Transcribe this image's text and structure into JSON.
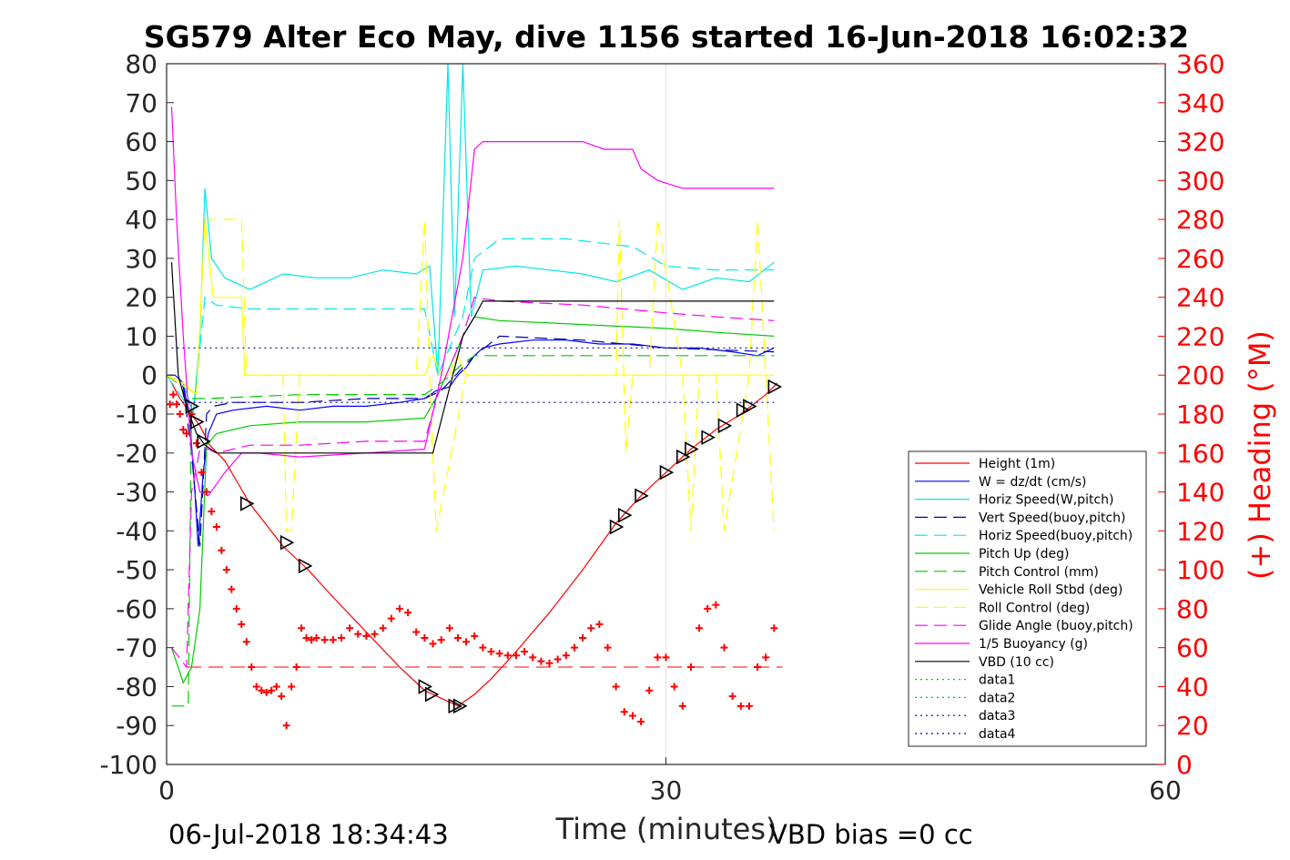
{
  "chart_data": {
    "type": "line",
    "title": "SG579 Alter Eco May, dive 1156 started 16-Jun-2018 16:02:32",
    "xlabel": "Time (minutes)",
    "ylabel": "",
    "ylabel_right": "(+) Heading (°M)",
    "xlim": [
      0,
      60
    ],
    "ylim": [
      -100,
      80
    ],
    "ylim_right": [
      0,
      360
    ],
    "x_ticks": [
      "0",
      "30",
      "60"
    ],
    "y_ticks": [
      "80",
      "70",
      "60",
      "50",
      "40",
      "30",
      "20",
      "10",
      "0",
      "-10",
      "-20",
      "-30",
      "-40",
      "-50",
      "-60",
      "-70",
      "-80",
      "-90",
      "-100"
    ],
    "y_ticks_right": [
      "360",
      "340",
      "320",
      "300",
      "280",
      "260",
      "240",
      "220",
      "200",
      "180",
      "160",
      "140",
      "120",
      "100",
      "80",
      "60",
      "40",
      "20",
      "0"
    ],
    "grid": "x-major only",
    "legend_position": "lower-right",
    "footer_left": "06-Jul-2018 18:34:43",
    "footer_right": "VBD bias =0 cc",
    "series": [
      {
        "name": "Height (1m)",
        "color": "#ff0000",
        "style": "solid",
        "x": [
          0.3,
          0.8,
          1.3,
          2.0,
          2.6,
          3.5,
          5,
          7,
          8.5,
          10,
          12,
          14,
          15.5,
          16.5,
          17.5,
          18.5,
          19.5,
          21,
          23,
          25,
          27,
          28.5,
          30,
          31.5,
          33,
          34.5,
          36,
          36.7
        ],
        "y": [
          -2,
          -6,
          -9,
          -13,
          -18,
          -22,
          -33,
          -44,
          -50,
          -57,
          -66,
          -75,
          -81,
          -83,
          -85,
          -82,
          -78,
          -71,
          -61,
          -50,
          -38,
          -31,
          -25,
          -19,
          -14,
          -10,
          -5,
          -2
        ]
      },
      {
        "name": "W = dz/dt (cm/s)",
        "color": "#0000ff",
        "style": "solid",
        "x": [
          0,
          0.5,
          1.0,
          1.4,
          1.7,
          1.9,
          2.2,
          2.5,
          3,
          4,
          6,
          8,
          10,
          12,
          14,
          15.5,
          16.2,
          17,
          17.5,
          18,
          18.5,
          19,
          20,
          22,
          24,
          26,
          28,
          30,
          32,
          34,
          35.5,
          36.5
        ],
        "y": [
          0,
          0,
          -2,
          -12,
          -30,
          -44,
          -25,
          -15,
          -10,
          -9,
          -8,
          -9,
          -8,
          -8,
          -7,
          -6,
          -4,
          -3,
          0,
          2,
          5,
          7,
          8,
          9,
          9,
          8,
          8,
          7,
          7,
          6,
          5,
          7
        ]
      },
      {
        "name": "Horiz Speed(W,pitch)",
        "color": "#00e6e6",
        "style": "solid",
        "x": [
          0,
          1,
          1.6,
          2.0,
          2.3,
          2.7,
          3.5,
          4,
          5,
          7,
          9,
          11,
          13,
          15,
          15.8,
          16.3,
          16.9,
          17.3,
          17.8,
          18.3,
          19,
          21,
          23,
          25,
          27,
          29,
          31,
          33,
          35,
          36.5
        ],
        "y": [
          0,
          -2,
          -10,
          10,
          48,
          30,
          25,
          24,
          22,
          26,
          25,
          25,
          27,
          26,
          28,
          0,
          80,
          15,
          80,
          15,
          27,
          28,
          27,
          26,
          24,
          27,
          22,
          25,
          24,
          29
        ]
      },
      {
        "name": "Vert Speed(buoy,pitch)",
        "color": "#0000aa",
        "style": "dashed",
        "x": [
          0,
          1.0,
          1.5,
          2.0,
          2.4,
          2.8,
          4,
          8,
          12,
          15.5,
          16.5,
          17.8,
          18.5,
          20,
          25,
          30,
          36.5
        ],
        "y": [
          0,
          -3,
          -20,
          -44,
          -10,
          -8,
          -7,
          -7,
          -6,
          -6,
          -4,
          2,
          5,
          10,
          9,
          7,
          6
        ]
      },
      {
        "name": "Horiz Speed(buoy,pitch)",
        "color": "#00e6e6",
        "style": "dashed",
        "x": [
          0,
          1.6,
          2.3,
          3,
          5,
          8,
          12,
          15.5,
          16.3,
          17.8,
          18.5,
          20,
          24,
          28,
          30,
          33,
          36.5
        ],
        "y": [
          0,
          -10,
          20,
          18,
          17,
          17,
          17,
          17,
          0,
          15,
          30,
          35,
          35,
          33,
          28,
          27,
          27
        ]
      },
      {
        "name": "Pitch Up (deg)",
        "color": "#00cc00",
        "style": "solid",
        "x": [
          0.3,
          1.0,
          1.5,
          2.0,
          2.4,
          3,
          5,
          8,
          12,
          15.5,
          16.3,
          17.8,
          18.5,
          20,
          25,
          30,
          33,
          36.5
        ],
        "y": [
          -70,
          -79,
          -75,
          -60,
          -18,
          -15,
          -13,
          -12,
          -12,
          -11,
          -5,
          10,
          15,
          14,
          13,
          12,
          11,
          10
        ]
      },
      {
        "name": "Pitch Control (mm)",
        "color": "#00cc00",
        "style": "dashed",
        "x": [
          0.3,
          1.3,
          1.5,
          2.0,
          2.5,
          8,
          12,
          15.5,
          16.5,
          17.8,
          18.5,
          25,
          30,
          36.5
        ],
        "y": [
          -85,
          -85,
          -6,
          -6,
          -6,
          -5,
          -5,
          -5,
          -2,
          3,
          5,
          5,
          5,
          5
        ]
      },
      {
        "name": "Vehicle Roll Stbd (deg)",
        "color": "#ffff00",
        "style": "solid",
        "x": [
          0,
          1,
          1.8,
          2.3,
          2.8,
          4.5,
          4.7,
          5,
          7,
          10,
          12,
          15.5,
          16,
          16.5,
          17,
          17.5,
          18,
          20,
          22,
          25,
          28,
          30,
          32,
          33.5,
          35,
          36.5
        ],
        "y": [
          0,
          -2,
          -5,
          40,
          20,
          20,
          0,
          0,
          0,
          0,
          0,
          0,
          5,
          0,
          0,
          5,
          0,
          0,
          0,
          0,
          0,
          0,
          0,
          0,
          0,
          0
        ]
      },
      {
        "name": "Roll Control (deg)",
        "color": "#ffff00",
        "style": "dashed",
        "x": [
          0,
          1.8,
          2.3,
          4.5,
          4.8,
          7,
          7.2,
          7.5,
          8,
          15,
          15.5,
          15.8,
          16.2,
          18,
          25,
          27,
          27.2,
          27.6,
          28,
          29,
          29.5,
          31,
          31.5,
          32,
          33,
          33.5,
          35,
          35.5,
          36,
          36.5
        ],
        "y": [
          0,
          -5,
          40,
          40,
          0,
          0,
          -40,
          -40,
          0,
          0,
          40,
          0,
          -40,
          0,
          0,
          0,
          40,
          -20,
          0,
          0,
          40,
          0,
          -40,
          0,
          0,
          -40,
          0,
          40,
          0,
          -40
        ]
      },
      {
        "name": "Glide Angle (buoy,pitch)",
        "color": "#ff00ff",
        "style": "dashed",
        "x": [
          0.3,
          1.2,
          1.5,
          2.0,
          2.5,
          3,
          5,
          8,
          12,
          15.5,
          16.3,
          17.8,
          18.5,
          20,
          25,
          30,
          33,
          36.5
        ],
        "y": [
          -70,
          -75,
          -30,
          -19,
          -19,
          -20,
          -18,
          -18,
          -17,
          -17,
          -5,
          10,
          20,
          19,
          18,
          16,
          15,
          14
        ]
      },
      {
        "name": "1/5 Buoyancy (g)",
        "color": "#ff00ff",
        "style": "solid",
        "x": [
          0.3,
          0.6,
          1.0,
          1.5,
          2.0,
          2.5,
          3.5,
          4.5,
          5.5,
          8,
          12,
          15.5,
          16.5,
          17.8,
          18.5,
          19.0,
          20,
          22,
          25,
          26.3,
          28,
          28.5,
          29.5,
          31,
          36.5
        ],
        "y": [
          69,
          40,
          10,
          -20,
          -30,
          -31,
          -25,
          -20,
          -20,
          -21,
          -20,
          -19,
          0,
          30,
          58,
          60,
          60,
          60,
          60,
          58,
          58,
          53,
          50,
          48,
          48
        ]
      },
      {
        "name": "VBD (10 cc)",
        "color": "#000000",
        "style": "solid",
        "x": [
          0.3,
          0.7,
          1.2,
          1.8,
          2.3,
          3,
          5,
          10,
          15.5,
          16.0,
          17.8,
          18.5,
          19.0,
          25,
          30,
          36.5
        ],
        "y": [
          29,
          0,
          -8,
          -15,
          -18,
          -20,
          -20,
          -20,
          -20,
          -20,
          10,
          15,
          19,
          19,
          19,
          19
        ]
      },
      {
        "name": "data1",
        "color": "#00cc00",
        "style": "dotted",
        "x": [],
        "y": []
      },
      {
        "name": "data2",
        "color": "#00cc00",
        "style": "dotted",
        "x": [],
        "y": []
      },
      {
        "name": "data3",
        "color": "#0000aa",
        "style": "dotted",
        "x": [
          0.3,
          36.5
        ],
        "y": [
          7,
          7
        ]
      },
      {
        "name": "data4",
        "color": "#0000aa",
        "style": "dotted",
        "x": [
          0.3,
          36.5
        ],
        "y": [
          -7,
          -7
        ]
      }
    ],
    "reference_line": {
      "y": -75,
      "color": "#ff0000",
      "style": "dashed"
    },
    "heading_right_axis": {
      "x": [
        0.2,
        0.4,
        0.6,
        0.8,
        1.0,
        1.2,
        1.5,
        1.8,
        2.1,
        2.4,
        2.7,
        3.0,
        3.3,
        3.6,
        3.9,
        4.2,
        4.5,
        4.8,
        5.1,
        5.4,
        5.7,
        6.0,
        6.3,
        6.6,
        6.9,
        7.2,
        7.5,
        7.8,
        8.1,
        8.4,
        8.7,
        9.0,
        9.5,
        10,
        10.5,
        11,
        11.5,
        12,
        12.5,
        13,
        13.5,
        14,
        14.5,
        15,
        15.5,
        16,
        16.5,
        17,
        17.5,
        18,
        18.5,
        19,
        19.5,
        20,
        20.5,
        21,
        21.5,
        22,
        22.5,
        23,
        23.5,
        24,
        24.5,
        25,
        25.5,
        26,
        26.5,
        27,
        27.5,
        28,
        28.5,
        29,
        29.5,
        30,
        30.5,
        31,
        31.5,
        32,
        32.5,
        33,
        33.5,
        34,
        34.5,
        35,
        35.5,
        36,
        36.5
      ],
      "y": [
        185,
        190,
        185,
        180,
        172,
        170,
        180,
        165,
        150,
        140,
        130,
        122,
        110,
        100,
        90,
        80,
        72,
        63,
        50,
        40,
        38,
        37,
        38,
        40,
        35,
        20,
        40,
        50,
        70,
        65,
        64,
        65,
        64,
        64,
        65,
        70,
        67,
        66,
        67,
        70,
        75,
        80,
        78,
        68,
        65,
        62,
        64,
        70,
        65,
        63,
        66,
        60,
        58,
        57,
        56,
        56,
        58,
        55,
        53,
        52,
        54,
        56,
        60,
        65,
        70,
        72,
        60,
        40,
        27,
        25,
        22,
        38,
        55,
        55,
        40,
        30,
        50,
        70,
        80,
        82,
        60,
        35,
        30,
        30,
        50,
        55,
        70
      ]
    },
    "markers": {
      "x": [
        1.5,
        1.8,
        2.2,
        4.8,
        7.2,
        8.3,
        15.5,
        15.9,
        17.3,
        17.6,
        27,
        27.5,
        28.5,
        30,
        31,
        31.5,
        32.5,
        33.5,
        34.6,
        35,
        36.5
      ],
      "y": [
        -8,
        -12,
        -17,
        -33,
        -43,
        -49,
        -80,
        -82,
        -85,
        -85,
        -39,
        -36,
        -31,
        -25,
        -21,
        -19,
        -16,
        -13,
        -9,
        -8,
        -3
      ]
    }
  }
}
